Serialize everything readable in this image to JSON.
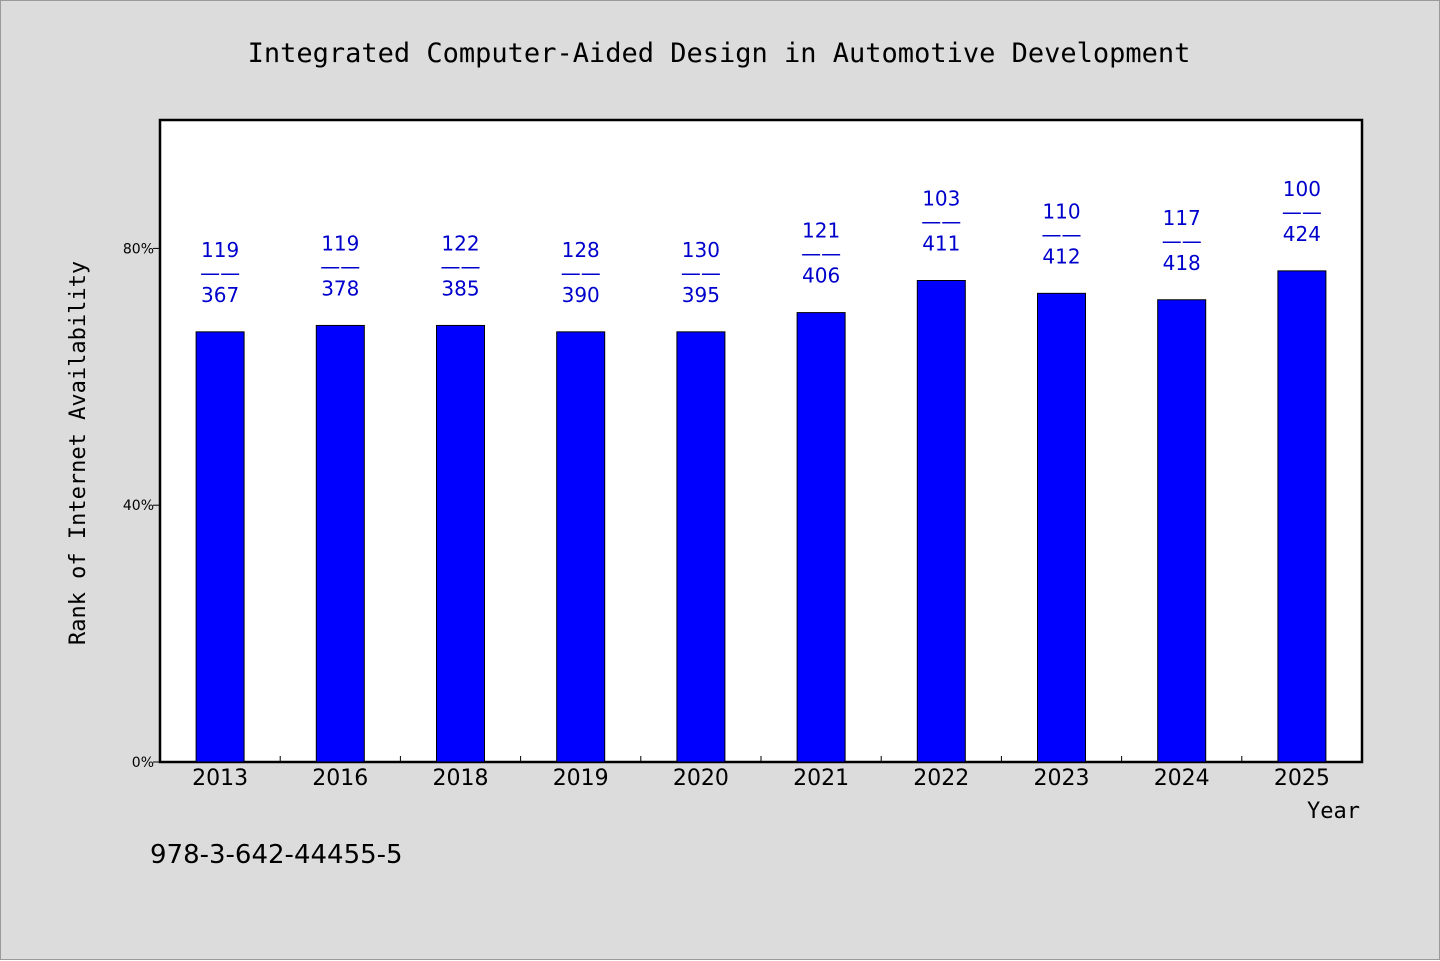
{
  "chart_data": {
    "type": "bar",
    "title": "Integrated Computer-Aided Design in Automotive Development",
    "xlabel": "Year",
    "ylabel": "Rank of Internet Availability",
    "categories": [
      "2013",
      "2016",
      "2018",
      "2019",
      "2020",
      "2021",
      "2022",
      "2023",
      "2024",
      "2025"
    ],
    "values": [
      0.67,
      0.68,
      0.68,
      0.67,
      0.67,
      0.7,
      0.75,
      0.73,
      0.72,
      0.765
    ],
    "numerators": [
      119,
      119,
      122,
      128,
      130,
      121,
      103,
      110,
      117,
      100
    ],
    "denominators": [
      367,
      378,
      385,
      390,
      395,
      406,
      411,
      412,
      418,
      424
    ],
    "label_separator": "——",
    "ylim": [
      0,
      1.0
    ],
    "yticks": [
      {
        "value": 0,
        "label": "0%"
      },
      {
        "value": 0.4,
        "label": "40%"
      },
      {
        "value": 0.8,
        "label": "80%"
      }
    ],
    "grid": false,
    "legend": "none"
  },
  "footer_code": "978-3-642-44455-5",
  "colors": {
    "bar": "#0000ff",
    "label": "#0000cc",
    "background": "#dcdcdc",
    "plot": "#ffffff"
  }
}
